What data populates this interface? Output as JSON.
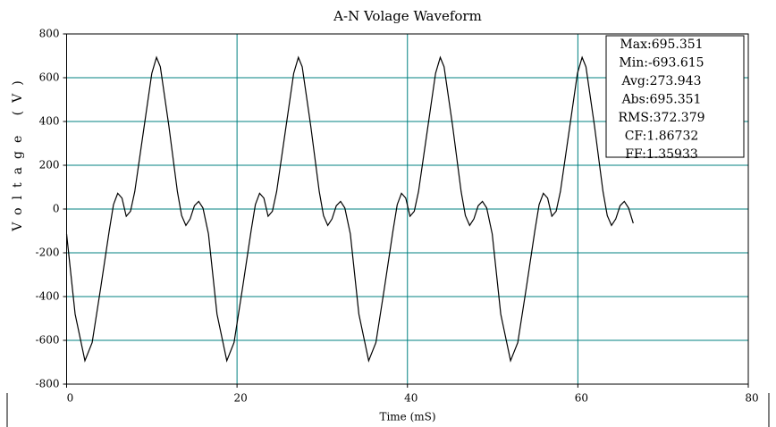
{
  "chart_data": {
    "type": "line",
    "title": "A-N Volage Waveform",
    "x_label": "Time (mS)",
    "y_label": "Voltage (V)",
    "xlim": [
      0,
      80
    ],
    "xticks": [
      0,
      20,
      40,
      60,
      80
    ],
    "ylim": [
      -800,
      800
    ],
    "yticks": [
      -800,
      -600,
      -400,
      -200,
      0,
      200,
      400,
      600,
      800
    ],
    "grid": true,
    "grid_color": "#008080",
    "annotations": [
      "Max:695.351",
      "Min:-693.615",
      "Avg:273.943",
      "Abs:695.351",
      "RMS:372.379",
      "CF:1.86732",
      "FF:1.35933"
    ],
    "series": [
      {
        "name": "A-N",
        "color": "#000000",
        "x": [
          0,
          1,
          2.15,
          3,
          4,
          5,
          5.5,
          6,
          6.5,
          7,
          7.5,
          8,
          9,
          10,
          10.55,
          11,
          12,
          13,
          13.5,
          14,
          14.5,
          15,
          15.5,
          16,
          16.65,
          17.65,
          18.8,
          19.65,
          20.65,
          21.65,
          22.15,
          22.65,
          23.15,
          23.65,
          24.15,
          24.65,
          25.65,
          26.65,
          27.2,
          27.65,
          28.65,
          29.65,
          30.15,
          30.65,
          31.15,
          31.65,
          32.15,
          32.65,
          33.3,
          34.3,
          35.45,
          36.3,
          37.3,
          38.3,
          38.8,
          39.3,
          39.8,
          40.3,
          40.8,
          41.3,
          42.3,
          43.3,
          43.85,
          44.3,
          45.3,
          46.3,
          46.8,
          47.3,
          47.8,
          48.3,
          48.8,
          49.3,
          49.95,
          50.95,
          52.1,
          52.95,
          53.95,
          54.95,
          55.45,
          55.95,
          56.45,
          56.95,
          57.45,
          57.95,
          58.95,
          59.95,
          60.5,
          60.95,
          61.95,
          62.95,
          63.45,
          63.95,
          64.45,
          64.95,
          65.45,
          65.95,
          66.5
        ],
        "values": [
          -114,
          -480,
          -693,
          -610,
          -360,
          -100,
          20,
          72,
          50,
          -33,
          -10,
          80,
          350,
          620,
          693,
          650,
          380,
          80,
          -30,
          -75,
          -45,
          15,
          35,
          5,
          -114,
          -480,
          -693,
          -610,
          -360,
          -100,
          20,
          72,
          50,
          -33,
          -10,
          80,
          350,
          620,
          693,
          650,
          380,
          80,
          -30,
          -75,
          -45,
          15,
          35,
          5,
          -114,
          -480,
          -693,
          -610,
          -360,
          -100,
          20,
          72,
          50,
          -33,
          -10,
          80,
          350,
          620,
          693,
          650,
          380,
          80,
          -30,
          -75,
          -45,
          15,
          35,
          5,
          -114,
          -480,
          -693,
          -610,
          -360,
          -100,
          20,
          72,
          50,
          -33,
          -10,
          80,
          350,
          620,
          693,
          650,
          380,
          80,
          -30,
          -75,
          -45,
          15,
          35,
          5,
          -65
        ]
      }
    ]
  }
}
